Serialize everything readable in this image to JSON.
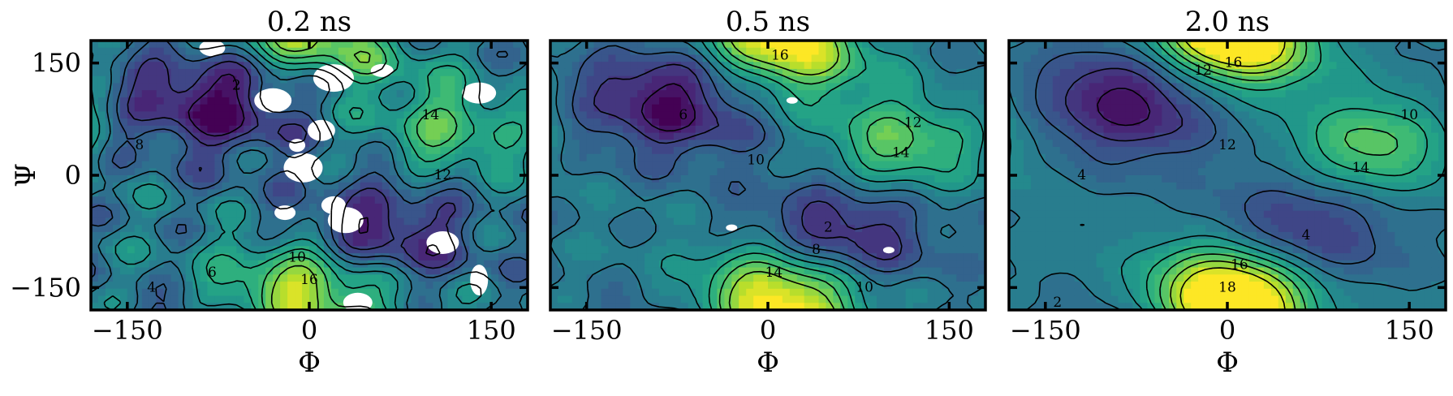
{
  "chart_data": [
    {
      "type": "contour",
      "title": "0.2 ns",
      "xlabel": "Φ",
      "ylabel": "Ψ",
      "xlim": [
        -180,
        180
      ],
      "ylim": [
        -180,
        180
      ],
      "x_ticks": [
        -150,
        0,
        150
      ],
      "y_ticks": [
        -150,
        0,
        150
      ],
      "x_tick_labels": [
        "−150",
        "0",
        "150"
      ],
      "y_tick_labels": [
        "−150",
        "0",
        "150"
      ],
      "colormap": "viridis",
      "contour_levels": [
        2,
        4,
        6,
        8,
        10,
        12,
        14,
        16
      ],
      "minima": [
        {
          "phi": -80,
          "psi": 100,
          "value": 1
        },
        {
          "phi": 60,
          "psi": -80,
          "value": 2
        }
      ],
      "maxima": [
        {
          "phi": -10,
          "psi": -150,
          "value": 18
        },
        {
          "phi": 120,
          "psi": 60,
          "value": 14
        },
        {
          "phi": 40,
          "psi": 160,
          "value": 12
        }
      ],
      "contour_labels": [
        {
          "phi": -60,
          "psi": 120,
          "text": "2"
        },
        {
          "phi": -130,
          "psi": -150,
          "text": "4"
        },
        {
          "phi": -80,
          "psi": -130,
          "text": "6"
        },
        {
          "phi": -140,
          "psi": 40,
          "text": "8"
        },
        {
          "phi": 110,
          "psi": 0,
          "text": "12"
        },
        {
          "phi": 100,
          "psi": 80,
          "text": "14"
        },
        {
          "phi": -10,
          "psi": -110,
          "text": "10"
        },
        {
          "phi": 0,
          "psi": -140,
          "text": "16"
        }
      ]
    },
    {
      "type": "contour",
      "title": "0.5 ns",
      "xlabel": "Φ",
      "ylabel": "",
      "xlim": [
        -180,
        180
      ],
      "ylim": [
        -180,
        180
      ],
      "x_ticks": [
        -150,
        0,
        150
      ],
      "y_ticks": [
        -150,
        0,
        150
      ],
      "x_tick_labels": [
        "−150",
        "0",
        "150"
      ],
      "colormap": "viridis",
      "contour_levels": [
        2,
        4,
        6,
        8,
        10,
        12,
        14,
        16
      ],
      "minima": [
        {
          "phi": -80,
          "psi": 100,
          "value": 1
        },
        {
          "phi": 60,
          "psi": -80,
          "value": 2
        }
      ],
      "maxima": [
        {
          "phi": 5,
          "psi": -150,
          "value": 17
        },
        {
          "phi": 110,
          "psi": 40,
          "value": 15
        },
        {
          "phi": 20,
          "psi": 160,
          "value": 16
        }
      ],
      "contour_labels": [
        {
          "phi": 10,
          "psi": 160,
          "text": "16"
        },
        {
          "phi": 110,
          "psi": 30,
          "text": "14"
        },
        {
          "phi": 120,
          "psi": 70,
          "text": "12"
        },
        {
          "phi": -10,
          "psi": 20,
          "text": "10"
        },
        {
          "phi": -70,
          "psi": 80,
          "text": "6"
        },
        {
          "phi": 50,
          "psi": -70,
          "text": "2"
        },
        {
          "phi": 40,
          "psi": -100,
          "text": "8"
        },
        {
          "phi": 5,
          "psi": -130,
          "text": "14"
        },
        {
          "phi": 80,
          "psi": -150,
          "text": "10"
        }
      ]
    },
    {
      "type": "contour",
      "title": "2.0 ns",
      "xlabel": "Φ",
      "ylabel": "",
      "xlim": [
        -180,
        180
      ],
      "ylim": [
        -180,
        180
      ],
      "x_ticks": [
        -150,
        0,
        150
      ],
      "y_ticks": [
        -150,
        0,
        150
      ],
      "x_tick_labels": [
        "−150",
        "0",
        "150"
      ],
      "colormap": "viridis",
      "contour_levels": [
        2,
        4,
        6,
        8,
        10,
        12,
        14,
        16,
        18
      ],
      "minima": [
        {
          "phi": -80,
          "psi": 100,
          "value": 1
        },
        {
          "phi": 60,
          "psi": -80,
          "value": 3
        }
      ],
      "maxima": [
        {
          "phi": 0,
          "psi": -150,
          "value": 19
        },
        {
          "phi": 120,
          "psi": 40,
          "value": 15
        },
        {
          "phi": 10,
          "psi": 170,
          "value": 17
        }
      ],
      "contour_labels": [
        {
          "phi": 5,
          "psi": 150,
          "text": "16"
        },
        {
          "phi": -20,
          "psi": 140,
          "text": "12"
        },
        {
          "phi": 150,
          "psi": 80,
          "text": "10"
        },
        {
          "phi": 110,
          "psi": 10,
          "text": "14"
        },
        {
          "phi": 0,
          "psi": 40,
          "text": "12"
        },
        {
          "phi": -120,
          "psi": 0,
          "text": "4"
        },
        {
          "phi": 65,
          "psi": -80,
          "text": "4"
        },
        {
          "phi": 10,
          "psi": -120,
          "text": "16"
        },
        {
          "phi": 0,
          "psi": -150,
          "text": "18"
        },
        {
          "phi": -140,
          "psi": -170,
          "text": "2"
        }
      ]
    }
  ]
}
